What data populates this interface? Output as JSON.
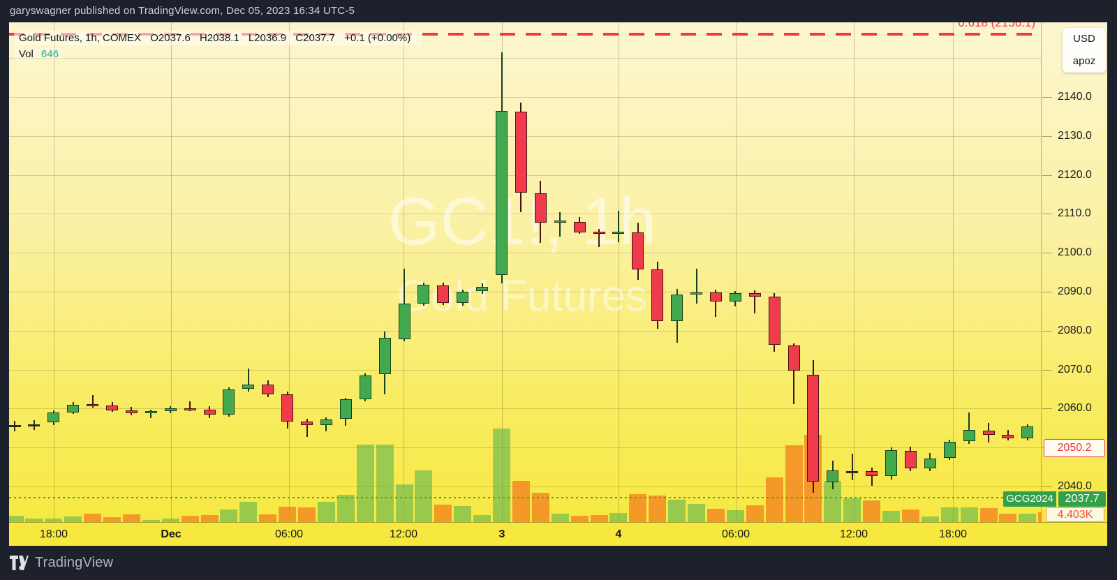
{
  "header": {
    "text": "garyswagner published on TradingView.com, Dec 05, 2023 16:34 UTC-5"
  },
  "legend": {
    "title": "Gold Futures, 1h, COMEX",
    "open": "O2037.6",
    "high": "H2038.1",
    "low": "L2036.9",
    "close": "C2037.7",
    "change": "+0.1 (+0.00%)",
    "vol_label": "Vol",
    "vol_value": "646"
  },
  "watermark": {
    "line1": "GC1!, 1h",
    "line2": "Gold Futures"
  },
  "fib": {
    "label": "0.618 (2156.1)",
    "price": 2156.1
  },
  "unit_box": {
    "currency": "USD",
    "unit": "apoz"
  },
  "price_labels": {
    "last_price": "2050.2",
    "contract": "GCG2024",
    "contract_price": "2037.7",
    "last_volume": "4.403K"
  },
  "footer": {
    "brand": "TradingView"
  },
  "colors": {
    "up_fill": "#42a94e",
    "up_border": "#173f1f",
    "down_fill": "#ef3b4a",
    "down_border": "#471119",
    "neutral": "#2b2b22",
    "vol_up": "rgba(76,175,80,0.55)",
    "vol_down": "rgba(243,139,35,0.85)",
    "fib": "#f23645",
    "contract_line": "#3fa64d",
    "bg_top": "#fcf6d0",
    "bg_bottom": "#f7e83c"
  },
  "chart_data": {
    "type": "candlestick",
    "symbol": "GC1!",
    "name": "Gold Futures",
    "timeframe": "1h",
    "exchange": "COMEX",
    "legend_ohlc": {
      "open": 2037.6,
      "high": 2038.1,
      "low": 2036.9,
      "close": 2037.7,
      "change": 0.1,
      "change_pct": 0.0
    },
    "current_volume": 646,
    "y_axis": {
      "ticks": [
        2140,
        2130,
        2120,
        2110,
        2100,
        2090,
        2080,
        2070,
        2060,
        2050,
        2040
      ],
      "visible_range": [
        2031,
        2159
      ],
      "unit": "USD apoz"
    },
    "x_axis_labels": [
      "18:00",
      "Dec",
      "06:00",
      "12:00",
      "3",
      "4",
      "06:00",
      "12:00",
      "18:00"
    ],
    "fib_level": {
      "ratio": 0.618,
      "price": 2156.1
    },
    "contract_price_line": {
      "symbol": "GCG2024",
      "price": 2037.7
    },
    "last_price": 2050.2,
    "last_volume_label": "4.403K",
    "candles_fields": [
      "open",
      "high",
      "low",
      "close",
      "volume_rel"
    ],
    "candles": [
      [
        2055.8,
        2056.8,
        2054.2,
        2055.8,
        9
      ],
      [
        2056.0,
        2057.0,
        2054.6,
        2056.0,
        5
      ],
      [
        2056.4,
        2059.6,
        2055.8,
        2059.0,
        5
      ],
      [
        2059.0,
        2061.6,
        2058.6,
        2061.0,
        8
      ],
      [
        2061.2,
        2063.4,
        2060.2,
        2060.8,
        12
      ],
      [
        2060.8,
        2061.6,
        2059.2,
        2059.6,
        7
      ],
      [
        2059.6,
        2060.4,
        2058.2,
        2058.9,
        11
      ],
      [
        2058.9,
        2059.8,
        2057.6,
        2059.3,
        3
      ],
      [
        2059.3,
        2060.6,
        2058.9,
        2060.1,
        5
      ],
      [
        2060.1,
        2061.8,
        2059.4,
        2059.8,
        9
      ],
      [
        2059.8,
        2060.6,
        2057.6,
        2058.4,
        10
      ],
      [
        2058.4,
        2065.4,
        2058.0,
        2065.0,
        18
      ],
      [
        2065.0,
        2070.3,
        2064.4,
        2066.2,
        29
      ],
      [
        2066.2,
        2067.3,
        2063.0,
        2063.7,
        11
      ],
      [
        2063.7,
        2064.4,
        2054.8,
        2056.7,
        22
      ],
      [
        2056.7,
        2057.4,
        2052.7,
        2055.8,
        21
      ],
      [
        2055.7,
        2057.8,
        2054.2,
        2057.2,
        29
      ],
      [
        2057.3,
        2062.8,
        2055.6,
        2062.4,
        39
      ],
      [
        2062.4,
        2069.0,
        2061.8,
        2068.5,
        111
      ],
      [
        2068.8,
        2079.8,
        2063.6,
        2078.1,
        111
      ],
      [
        2077.8,
        2096.0,
        2077.2,
        2087.0,
        54
      ],
      [
        2087.0,
        2092.3,
        2086.4,
        2091.8,
        74
      ],
      [
        2091.7,
        2092.4,
        2086.6,
        2087.1,
        25
      ],
      [
        2087.1,
        2090.6,
        2086.5,
        2090.0,
        23
      ],
      [
        2090.2,
        2092.1,
        2089.4,
        2091.3,
        10
      ],
      [
        2094.3,
        2151.5,
        2092.2,
        2136.4,
        134
      ],
      [
        2136.2,
        2138.5,
        2110.4,
        2115.4,
        59
      ],
      [
        2115.2,
        2118.5,
        2102.6,
        2107.8,
        42
      ],
      [
        2107.8,
        2110.4,
        2104.1,
        2108.2,
        12
      ],
      [
        2108.0,
        2109.2,
        2104.8,
        2105.3,
        9
      ],
      [
        2105.4,
        2106.2,
        2101.4,
        2105.1,
        10
      ],
      [
        2105.1,
        2110.7,
        2102.8,
        2105.5,
        13
      ],
      [
        2105.3,
        2107.7,
        2093.1,
        2095.8,
        40
      ],
      [
        2095.8,
        2097.7,
        2080.5,
        2082.4,
        38
      ],
      [
        2082.4,
        2090.7,
        2076.9,
        2089.3,
        32
      ],
      [
        2089.3,
        2095.9,
        2087.0,
        2089.9,
        26
      ],
      [
        2089.8,
        2090.6,
        2083.6,
        2087.5,
        19
      ],
      [
        2087.5,
        2090.2,
        2086.2,
        2089.6,
        17
      ],
      [
        2089.6,
        2090.4,
        2084.4,
        2088.8,
        24
      ],
      [
        2088.8,
        2089.6,
        2074.5,
        2076.3,
        64
      ],
      [
        2076.2,
        2076.8,
        2061.2,
        2069.8,
        110
      ],
      [
        2068.6,
        2072.4,
        2038.3,
        2041.2,
        125
      ],
      [
        2041.0,
        2046.6,
        2039.3,
        2044.1,
        59
      ],
      [
        2044.0,
        2048.4,
        2041.6,
        2044.0,
        34
      ],
      [
        2044.0,
        2044.8,
        2040.2,
        2042.7,
        31
      ],
      [
        2042.7,
        2050.0,
        2041.8,
        2049.3,
        16
      ],
      [
        2049.2,
        2050.3,
        2044.0,
        2044.6,
        18
      ],
      [
        2044.7,
        2048.6,
        2044.0,
        2047.2,
        8
      ],
      [
        2047.4,
        2052.0,
        2046.8,
        2051.4,
        21
      ],
      [
        2051.6,
        2059.0,
        2051.0,
        2054.5,
        21
      ],
      [
        2054.4,
        2056.3,
        2051.3,
        2053.2,
        20
      ],
      [
        2053.3,
        2054.6,
        2051.8,
        2052.4,
        12
      ],
      [
        2052.3,
        2056.0,
        2051.8,
        2055.4,
        12
      ],
      [
        2055.2,
        2055.8,
        2048.0,
        2050.2,
        14
      ]
    ],
    "time_ticks_x": [
      64,
      232,
      401,
      565,
      706,
      873,
      1041,
      1210,
      1352
    ],
    "time_ticks_bold": [
      false,
      true,
      false,
      false,
      true,
      true,
      false,
      false,
      false
    ],
    "price_gridlines": [
      2150,
      2140,
      2130,
      2120,
      2110,
      2100,
      2090,
      2080,
      2070,
      2060,
      2050,
      2040
    ]
  }
}
